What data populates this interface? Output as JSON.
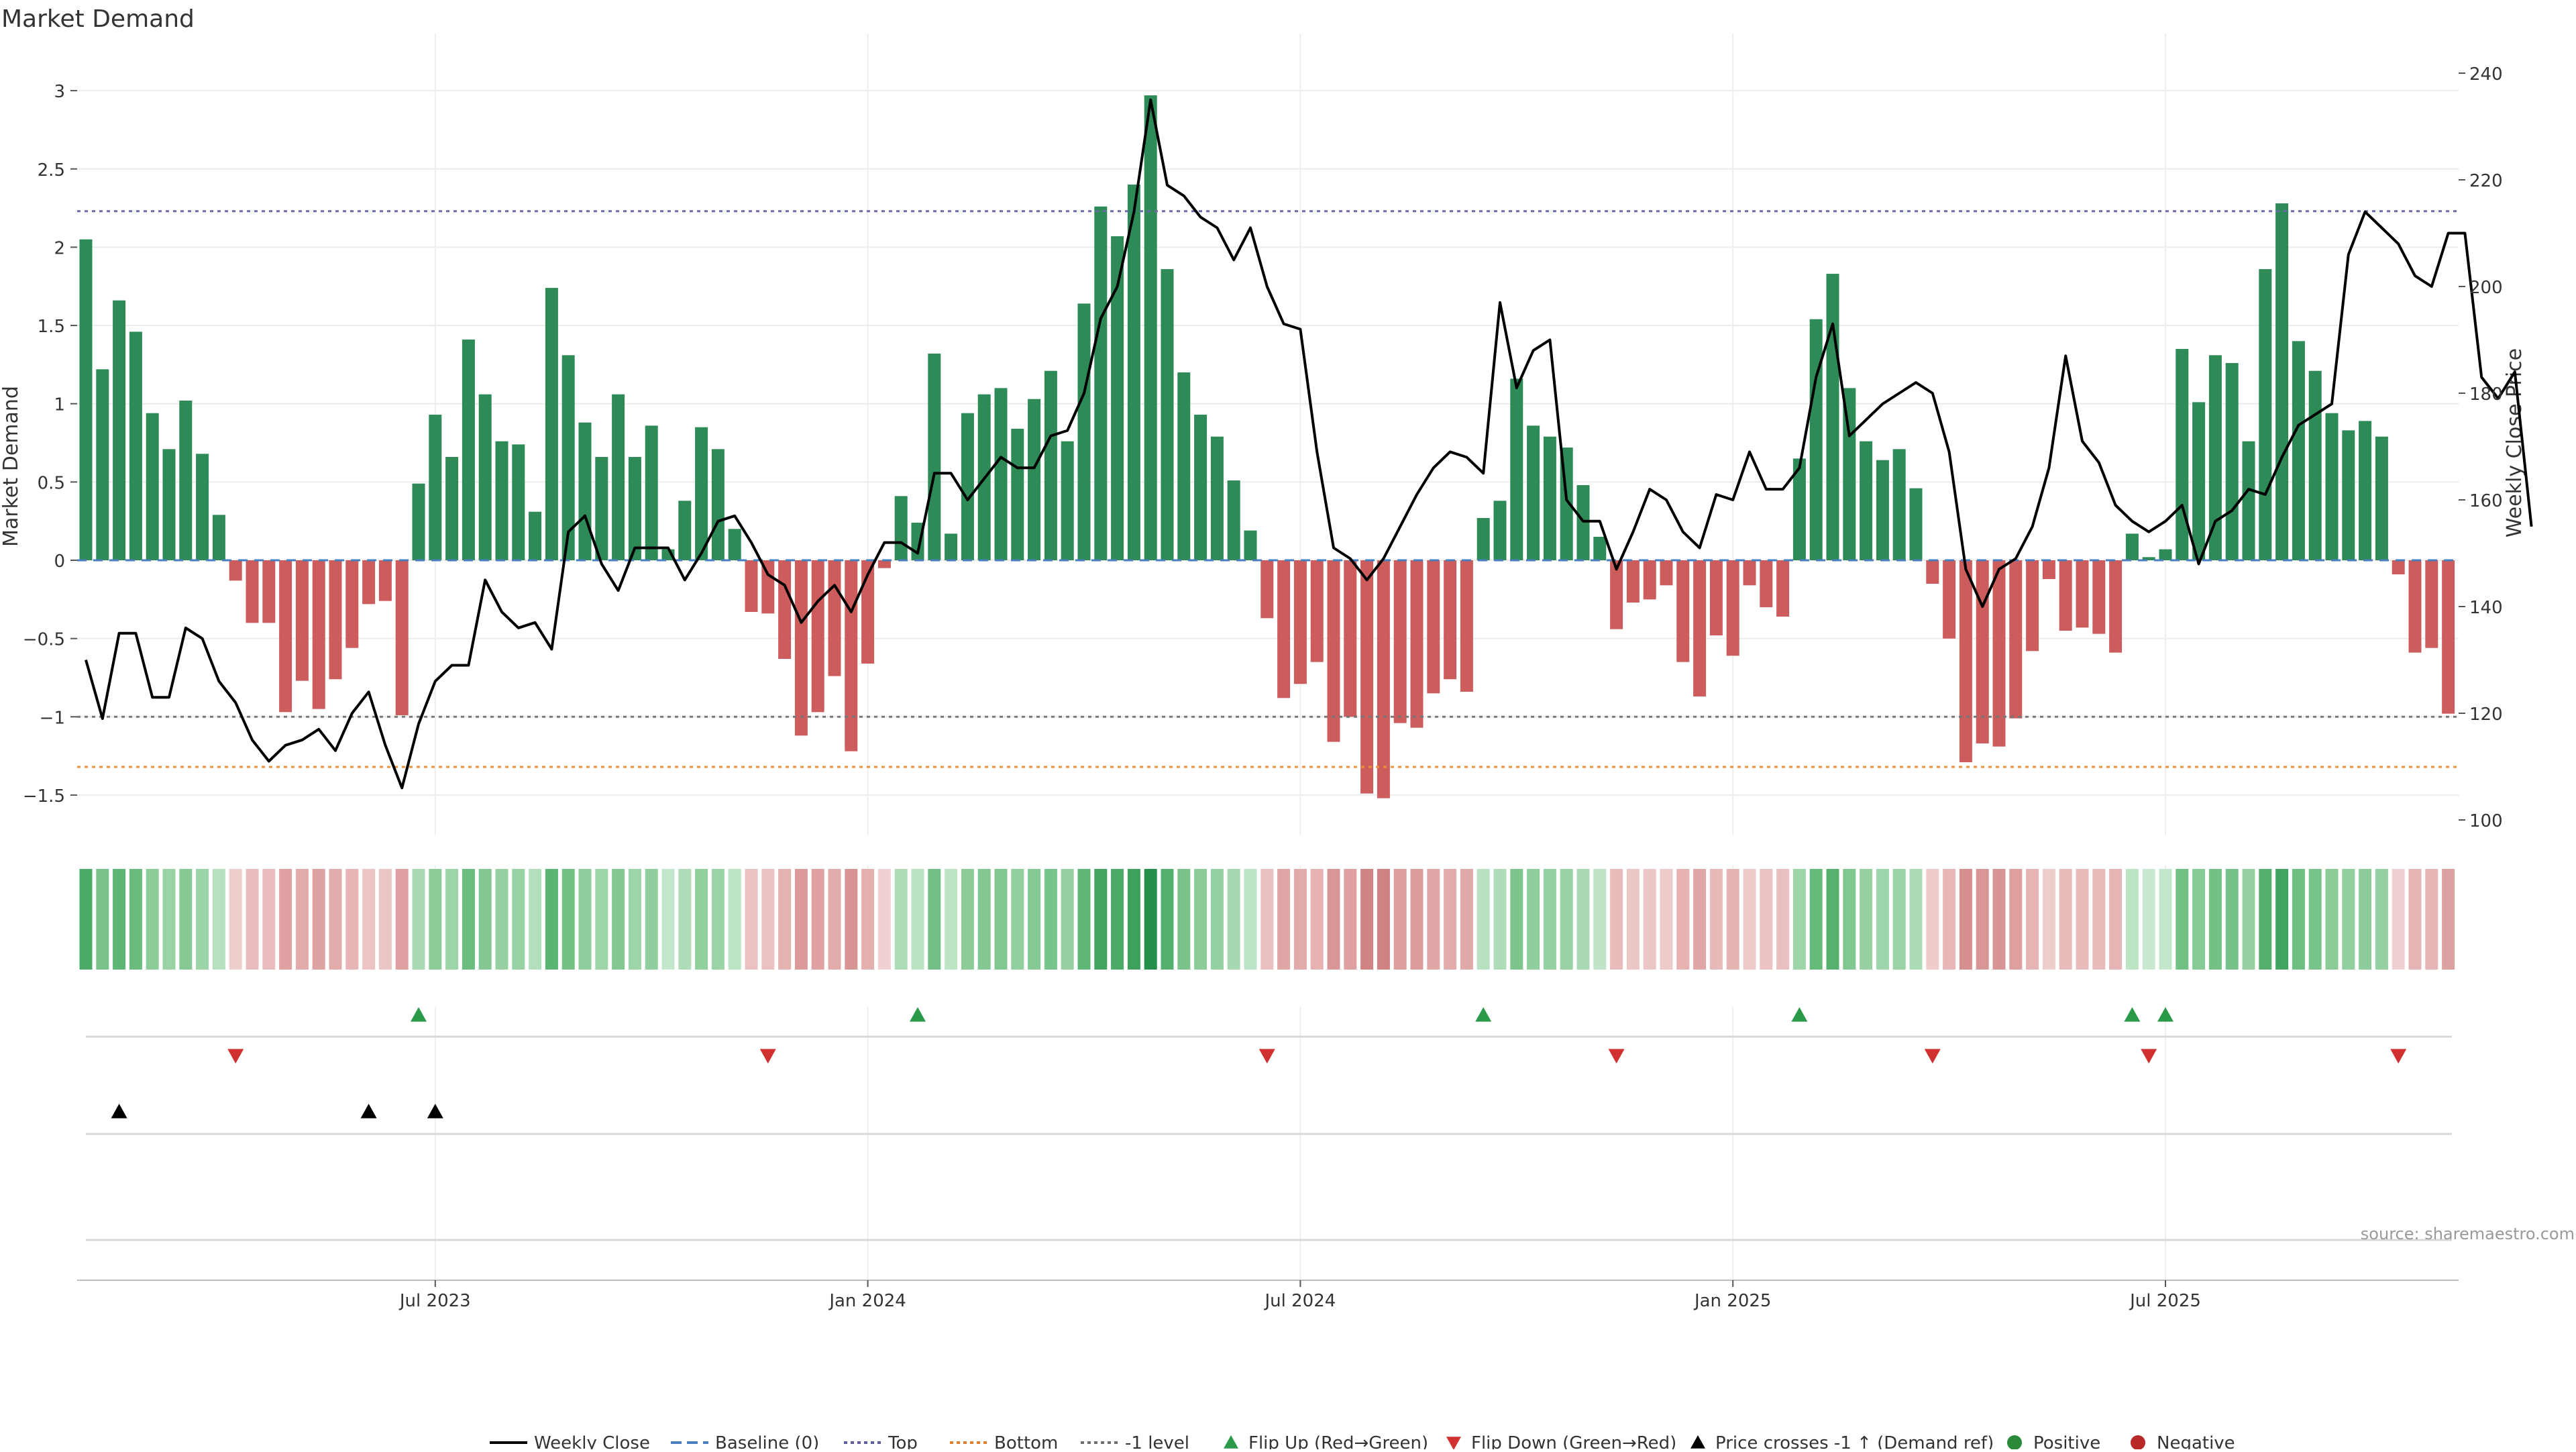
{
  "chart_data": {
    "type": "bar",
    "title": "Market Demand",
    "ylabel": "Market Demand",
    "y2label": "Weekly Close Price",
    "ylim": [
      -1.75,
      3.25
    ],
    "y2lim": [
      98,
      238
    ],
    "yticks": [
      "3",
      "2.5",
      "2",
      "1.5",
      "1",
      "0.5",
      "0",
      "−0.5",
      "−1",
      "−1.5"
    ],
    "ytick_values": [
      3,
      2.5,
      2,
      1.5,
      1,
      0.5,
      0,
      -0.5,
      -1,
      -1.5
    ],
    "y2ticks": [
      "240",
      "220",
      "200",
      "180",
      "160",
      "140",
      "120",
      "100"
    ],
    "y2tick_values": [
      240,
      220,
      200,
      180,
      160,
      140,
      120,
      100
    ],
    "x_tick_labels": [
      "Jul 2023",
      "Jan 2024",
      "Jul 2024",
      "Jan 2025",
      "Jul 2025"
    ],
    "x_tick_weeks": [
      21,
      47,
      73,
      99,
      125
    ],
    "levels": {
      "top": 2.23,
      "bottom": -1.32,
      "minus_one": -1.0,
      "baseline": 0
    },
    "demand": [
      2.05,
      1.22,
      1.66,
      1.46,
      0.94,
      0.71,
      1.02,
      0.68,
      0.29,
      -0.13,
      -0.4,
      -0.4,
      -0.97,
      -0.77,
      -0.95,
      -0.76,
      -0.56,
      -0.28,
      -0.26,
      -0.99,
      0.49,
      0.93,
      0.66,
      1.41,
      1.06,
      0.76,
      0.74,
      0.31,
      1.74,
      1.31,
      0.88,
      0.66,
      1.06,
      0.66,
      0.86,
      0.07,
      0.38,
      0.85,
      0.71,
      0.2,
      -0.33,
      -0.34,
      -0.63,
      -1.12,
      -0.97,
      -0.74,
      -1.22,
      -0.66,
      -0.05,
      0.41,
      0.24,
      1.32,
      0.17,
      0.94,
      1.06,
      1.1,
      0.84,
      1.03,
      1.21,
      0.76,
      1.64,
      2.26,
      2.07,
      2.4,
      2.97,
      1.86,
      1.2,
      0.93,
      0.79,
      0.51,
      0.19,
      -0.37,
      -0.88,
      -0.79,
      -0.65,
      -1.16,
      -1.0,
      -1.49,
      -1.52,
      -1.04,
      -1.07,
      -0.85,
      -0.76,
      -0.84,
      0.27,
      0.38,
      1.16,
      0.86,
      0.79,
      0.72,
      0.48,
      0.15,
      -0.44,
      -0.27,
      -0.25,
      -0.16,
      -0.65,
      -0.87,
      -0.48,
      -0.61,
      -0.16,
      -0.3,
      -0.36,
      0.65,
      1.54,
      1.83,
      1.1,
      0.76,
      0.64,
      0.71,
      0.46,
      -0.15,
      -0.5,
      -1.29,
      -1.17,
      -1.19,
      -1.01,
      -0.58,
      -0.12,
      -0.45,
      -0.43,
      -0.47,
      -0.59,
      0.17,
      0.02,
      0.07,
      1.35,
      1.01,
      1.31,
      1.26,
      0.76,
      1.86,
      2.28,
      1.4,
      1.21,
      0.94,
      0.83,
      0.89,
      0.79,
      -0.09,
      -0.59,
      -0.56,
      -0.98
    ],
    "price": [
      130,
      119,
      135,
      135,
      123,
      123,
      136,
      134,
      126,
      122,
      115,
      111,
      114,
      115,
      117,
      113,
      120,
      124,
      114,
      106,
      118,
      126,
      129,
      129,
      145,
      139,
      136,
      137,
      132,
      154,
      157,
      148,
      143,
      151,
      151,
      151,
      145,
      150,
      156,
      157,
      152,
      146,
      144,
      137,
      141,
      144,
      139,
      146,
      152,
      152,
      150,
      165,
      165,
      160,
      164,
      168,
      166,
      166,
      172,
      173,
      180,
      194,
      200,
      214,
      235,
      219,
      217,
      213,
      211,
      205,
      211,
      200,
      193,
      192,
      169,
      151,
      149,
      145,
      149,
      155,
      161,
      166,
      169,
      168,
      165,
      197,
      181,
      188,
      190,
      160,
      156,
      156,
      147,
      154,
      162,
      160,
      154,
      151,
      161,
      160,
      169,
      162,
      162,
      166,
      183,
      193,
      172,
      175,
      178,
      180,
      182,
      180,
      169,
      147,
      140,
      147,
      149,
      155,
      166,
      187,
      171,
      167,
      159,
      156,
      154,
      156,
      159,
      148,
      156,
      158,
      162,
      161,
      168,
      174,
      176,
      178,
      206,
      214,
      211,
      208,
      202,
      200,
      210,
      210,
      183,
      179,
      184,
      155
    ]
  },
  "markers": {
    "flip_up_weeks": [
      20,
      50,
      84,
      103,
      123,
      125
    ],
    "flip_down_weeks": [
      9,
      41,
      71,
      92,
      111,
      124,
      139
    ],
    "price_cross_weeks": [
      2,
      17,
      21
    ]
  },
  "source": "source: sharemaestro.com",
  "legend": [
    {
      "label": "Weekly Close",
      "style": "line",
      "color": "#000000"
    },
    {
      "label": "Baseline (0)",
      "style": "dash",
      "color": "#4a7fbf"
    },
    {
      "label": "Top",
      "style": "dot",
      "color": "#6060a0"
    },
    {
      "label": "Bottom",
      "style": "dot",
      "color": "#e08030"
    },
    {
      "label": "-1 level",
      "style": "dot",
      "color": "#707070"
    },
    {
      "label": "Flip Up (Red→Green)",
      "style": "tri-up",
      "color": "#2a9a48"
    },
    {
      "label": "Flip Down (Green→Red)",
      "style": "tri-down",
      "color": "#d03030"
    },
    {
      "label": "Price crosses -1 ↑ (Demand ref)",
      "style": "tri-up",
      "color": "#000000"
    },
    {
      "label": "Positive",
      "style": "circle",
      "color": "#2a8a3a"
    },
    {
      "label": "Negative",
      "style": "circle",
      "color": "#b82a2a"
    }
  ],
  "colors": {
    "positive_bar": "#2e8a57",
    "negative_bar": "#cd5c5c",
    "price_line": "#000000",
    "top_line": "#6a6aa8",
    "bottom_line": "#e8913a",
    "minus_one_line": "#777777",
    "baseline": "#4a7fbf",
    "flip_up": "#2a9a48",
    "flip_down": "#d03030",
    "cross": "#000000"
  }
}
